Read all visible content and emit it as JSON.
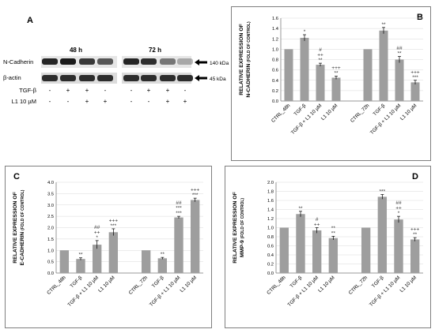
{
  "panelA": {
    "letter": "A",
    "time_left": "48 h",
    "time_right": "72 h",
    "row_ncad": "N-Cadherin",
    "row_actin": "β-actin",
    "kda_ncad": "140 kDa",
    "kda_actin": "45 kDa",
    "tgf_label": "TGF-β",
    "l1_label": "L1 10 µM",
    "tgf_signs": [
      "-",
      "+",
      "+",
      "-",
      "-",
      "+",
      "+",
      "-"
    ],
    "l1_signs": [
      "-",
      "-",
      "+",
      "+",
      "-",
      "-",
      "+",
      "+"
    ]
  },
  "chart_data": [
    {
      "panel": "B",
      "type": "bar",
      "ylabel_line1": "RELATIVE EXPRESSION OF",
      "ylabel_line2": "N-CADHERIN",
      "ylabel_suffix": "(FOLD OF CONTROL)",
      "ylim": [
        0,
        1.6
      ],
      "yticks": [
        "0.0",
        "0.2",
        "0.4",
        "0.6",
        "0.8",
        "1.0",
        "1.2",
        "1.4",
        "1.6"
      ],
      "ytick_values": [
        0,
        0.2,
        0.4,
        0.6,
        0.8,
        1.0,
        1.2,
        1.4,
        1.6
      ],
      "categories": [
        "CTRL_48h",
        "TGF-β",
        "TGF-β + L1 10 µM",
        "L1 10 µM",
        "CTRL_72h",
        "TGF-β",
        "TGF-β + L1 10 µM",
        "L1 10 µM"
      ],
      "values": [
        1.0,
        1.22,
        0.7,
        0.45,
        1.0,
        1.36,
        0.8,
        0.36
      ],
      "errors": [
        0,
        0.06,
        0.03,
        0.03,
        0,
        0.06,
        0.06,
        0.04
      ],
      "annotations": [
        [
          ""
        ],
        [
          "*"
        ],
        [
          "#",
          "++",
          "**"
        ],
        [
          "+++",
          "**"
        ],
        [
          ""
        ],
        [
          "**"
        ],
        [
          "##",
          "**"
        ],
        [
          "+++",
          "***"
        ]
      ]
    },
    {
      "panel": "C",
      "type": "bar",
      "ylabel_line1": "RELATIVE EXPRESSION OF",
      "ylabel_line2": "E-CADHERIN",
      "ylabel_suffix": "(FOLD OF CONTROL)",
      "ylim": [
        0,
        4.0
      ],
      "yticks": [
        "0.0",
        "0.5",
        "1.0",
        "1.5",
        "2.0",
        "2.5",
        "3.0",
        "3.5",
        "4.0"
      ],
      "ytick_values": [
        0,
        0.5,
        1.0,
        1.5,
        2.0,
        2.5,
        3.0,
        3.5,
        4.0
      ],
      "categories": [
        "CTRL_48h",
        "TGF-β",
        "TGF-β + L1 10 µM",
        "L1 10 µM",
        "CTRL_72h",
        "TGF-β",
        "TGF-β + L1 10 µM",
        "L1 10 µM"
      ],
      "values": [
        1.0,
        0.62,
        1.25,
        1.8,
        1.0,
        0.65,
        2.45,
        3.22
      ],
      "errors": [
        0,
        0.05,
        0.18,
        0.15,
        0,
        0.04,
        0.05,
        0.08
      ],
      "annotations": [
        [
          ""
        ],
        [
          "**"
        ],
        [
          "##",
          "++",
          "*"
        ],
        [
          "+++",
          "***"
        ],
        [
          ""
        ],
        [
          "**"
        ],
        [
          "##",
          "***",
          "***"
        ],
        [
          "+++",
          "***"
        ]
      ]
    },
    {
      "panel": "D",
      "type": "bar",
      "ylabel_line1": "RELATIVE EXPRESSION OF",
      "ylabel_line2": "MMP-9",
      "ylabel_suffix": "(FOLD OF CONTROL)",
      "ylim": [
        0,
        2.0
      ],
      "yticks": [
        "0.0",
        "0.2",
        "0.4",
        "0.6",
        "0.8",
        "1.0",
        "1.2",
        "1.4",
        "1.6",
        "1.8",
        "2.0"
      ],
      "ytick_values": [
        0,
        0.2,
        0.4,
        0.6,
        0.8,
        1.0,
        1.2,
        1.4,
        1.6,
        1.8,
        2.0
      ],
      "categories": [
        "CTRL_48h",
        "TGF-β",
        "TGF-β + L1 10 µM",
        "L1 10 µM",
        "CTRL_72h",
        "TGF-β",
        "TGF-β + L1 10 µM",
        "L1 10 µM"
      ],
      "values": [
        1.0,
        1.3,
        0.94,
        0.77,
        1.0,
        1.68,
        1.18,
        0.74
      ],
      "errors": [
        0,
        0.06,
        0.06,
        0.04,
        0,
        0.05,
        0.07,
        0.04
      ],
      "annotations": [
        [
          ""
        ],
        [
          "**"
        ],
        [
          "#",
          "++"
        ],
        [
          "**",
          "**"
        ],
        [
          ""
        ],
        [
          "***"
        ],
        [
          "##",
          "++",
          "*"
        ],
        [
          "+++",
          "**"
        ]
      ]
    }
  ],
  "colors": {
    "bar": "#9e9e9e",
    "axis": "#7f7f7f",
    "grid": "#d9d9d9",
    "blot_dark": "#1a1a1a"
  }
}
